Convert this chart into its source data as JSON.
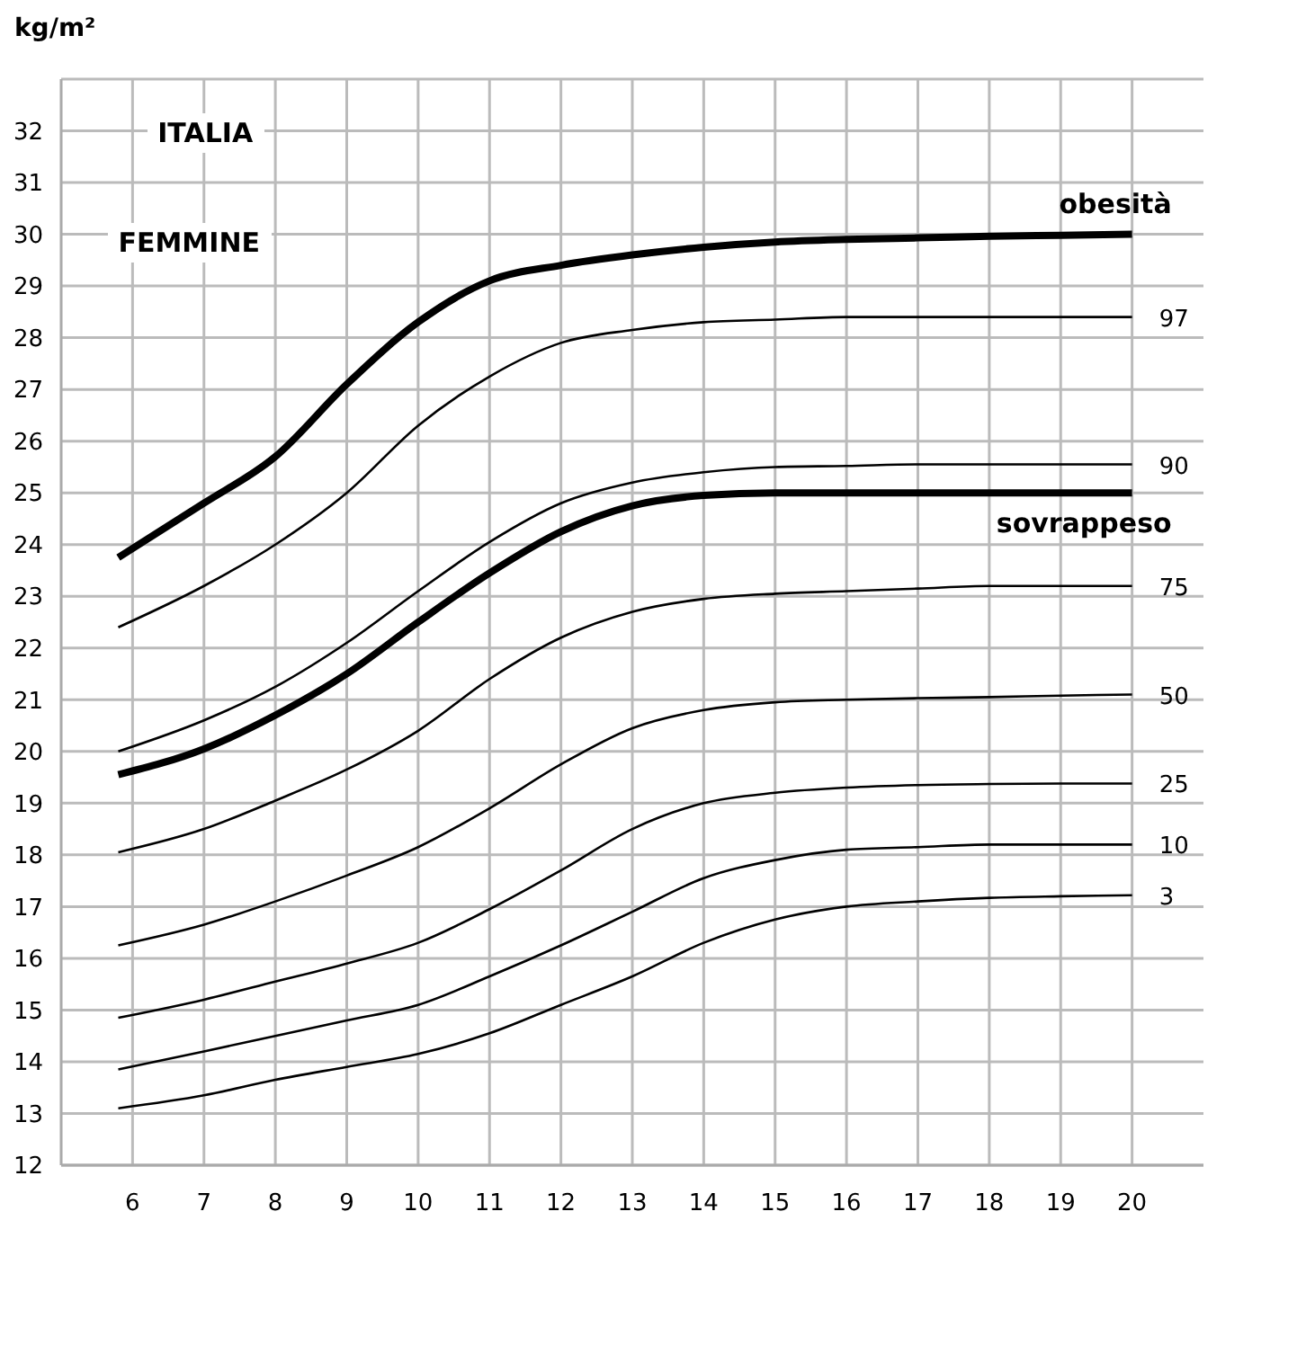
{
  "chart_data": {
    "type": "line",
    "ylabel": "kg/m²",
    "annotations": [
      "ITALIA",
      "FEMMINE"
    ],
    "x": [
      5.8,
      7,
      8,
      9,
      10,
      11,
      12,
      13,
      14,
      15,
      16,
      17,
      18,
      19,
      20
    ],
    "series": [
      {
        "name": "3",
        "color": "#000000",
        "values": [
          13.1,
          13.35,
          13.65,
          13.9,
          14.15,
          14.55,
          15.1,
          15.65,
          16.3,
          16.75,
          17.0,
          17.1,
          17.17,
          17.2,
          17.22
        ]
      },
      {
        "name": "10",
        "color": "#000000",
        "values": [
          13.85,
          14.2,
          14.5,
          14.8,
          15.1,
          15.65,
          16.25,
          16.9,
          17.55,
          17.9,
          18.1,
          18.15,
          18.2,
          18.2,
          18.2
        ]
      },
      {
        "name": "25",
        "color": "#000000",
        "values": [
          14.85,
          15.2,
          15.55,
          15.9,
          16.3,
          16.95,
          17.7,
          18.5,
          19.0,
          19.2,
          19.3,
          19.35,
          19.37,
          19.38,
          19.38
        ]
      },
      {
        "name": "50",
        "color": "#000000",
        "values": [
          16.25,
          16.65,
          17.1,
          17.6,
          18.15,
          18.9,
          19.75,
          20.45,
          20.8,
          20.95,
          21.0,
          21.03,
          21.05,
          21.08,
          21.1
        ]
      },
      {
        "name": "75",
        "color": "#000000",
        "values": [
          18.05,
          18.5,
          19.05,
          19.65,
          20.4,
          21.4,
          22.2,
          22.7,
          22.95,
          23.05,
          23.1,
          23.15,
          23.2,
          23.2,
          23.2
        ]
      },
      {
        "name": "sovrappeso",
        "color": "#000000",
        "values": [
          19.55,
          20.05,
          20.7,
          21.5,
          22.5,
          23.45,
          24.25,
          24.75,
          24.95,
          25.0,
          25.0,
          25.0,
          25.0,
          25.0,
          25.0
        ]
      },
      {
        "name": "90",
        "color": "#000000",
        "values": [
          20.0,
          20.6,
          21.25,
          22.1,
          23.1,
          24.05,
          24.8,
          25.2,
          25.4,
          25.5,
          25.52,
          25.55,
          25.55,
          25.55,
          25.55
        ]
      },
      {
        "name": "97",
        "color": "#000000",
        "values": [
          22.4,
          23.2,
          24.0,
          25.0,
          26.3,
          27.25,
          27.9,
          28.15,
          28.3,
          28.35,
          28.4,
          28.4,
          28.4,
          28.4,
          28.4
        ]
      },
      {
        "name": "obesità",
        "color": "#000000",
        "values": [
          23.75,
          24.8,
          25.7,
          27.1,
          28.3,
          29.1,
          29.4,
          29.6,
          29.75,
          29.85,
          29.9,
          29.93,
          29.96,
          29.98,
          30.0
        ]
      }
    ],
    "xlim": [
      5,
      21
    ],
    "xticks": [
      6,
      7,
      8,
      9,
      10,
      11,
      12,
      13,
      14,
      15,
      16,
      17,
      18,
      19,
      20
    ],
    "ylim": [
      12,
      33
    ],
    "yticks": [
      12,
      13,
      14,
      15,
      16,
      17,
      18,
      19,
      20,
      21,
      22,
      23,
      24,
      25,
      26,
      27,
      28,
      29,
      30,
      31,
      32,
      {
        "value": 33,
        "label": null
      }
    ],
    "grid": true,
    "legend": false,
    "marker": "none",
    "line_style": "solid"
  }
}
